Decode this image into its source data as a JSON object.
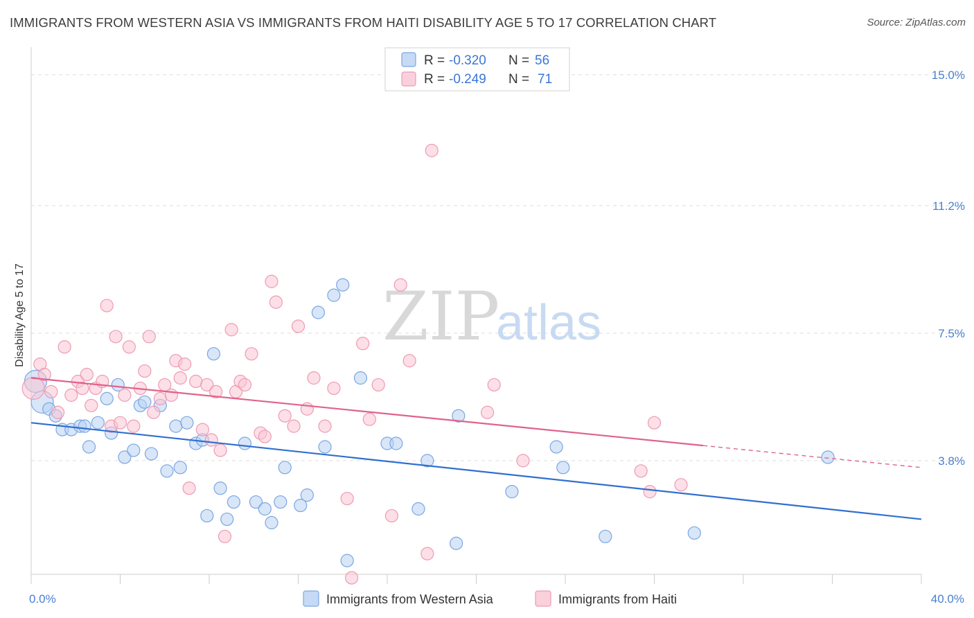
{
  "title": "IMMIGRANTS FROM WESTERN ASIA VS IMMIGRANTS FROM HAITI DISABILITY AGE 5 TO 17 CORRELATION CHART",
  "source": "Source: ZipAtlas.com",
  "watermark": {
    "zip": "ZIP",
    "atlas": "atlas"
  },
  "colors": {
    "blue_fill": "#b8d1f3",
    "blue_stroke": "#7aa6e3",
    "blue_line": "#2f6fd0",
    "pink_fill": "#f9c4d3",
    "pink_stroke": "#ee9ab3",
    "pink_line": "#e0628b",
    "tick_label": "#4a7fd0",
    "grid": "#dddddd"
  },
  "legend": {
    "rows": [
      {
        "r_label": "R =",
        "r_value": "-0.320",
        "n_label": "N =",
        "n_value": "56"
      },
      {
        "r_label": "R =",
        "r_value": "-0.249",
        "n_label": "N =",
        "n_value": "71"
      }
    ]
  },
  "chart_data": {
    "type": "scatter",
    "xlabel": "",
    "ylabel": "Disability Age 5 to 17",
    "xlim": [
      0,
      40
    ],
    "ylim": [
      0.5,
      15.6
    ],
    "y_ticks": [
      {
        "value": 3.8,
        "label": "3.8%"
      },
      {
        "value": 7.5,
        "label": "7.5%"
      },
      {
        "value": 11.2,
        "label": "11.2%"
      },
      {
        "value": 15.0,
        "label": "15.0%"
      }
    ],
    "x_tick_labels": {
      "min": "0.0%",
      "max": "40.0%"
    },
    "x_minor_ticks": [
      0,
      4,
      8,
      12,
      16,
      20,
      24,
      28,
      32,
      36,
      40
    ],
    "legend_position": "top-center",
    "series": [
      {
        "name": "Immigrants from Western Asia",
        "color_key": "blue",
        "trend": {
          "x0": 0,
          "y0": 4.9,
          "x1": 40,
          "y1": 2.1,
          "solid_to": 40
        },
        "points": [
          [
            0.2,
            6.1
          ],
          [
            0.5,
            5.5
          ],
          [
            0.8,
            5.3
          ],
          [
            1.1,
            5.1
          ],
          [
            1.4,
            4.7
          ],
          [
            1.8,
            4.7
          ],
          [
            2.2,
            4.8
          ],
          [
            2.4,
            4.8
          ],
          [
            2.6,
            4.2
          ],
          [
            3.0,
            4.9
          ],
          [
            3.4,
            5.6
          ],
          [
            3.6,
            4.6
          ],
          [
            3.9,
            6.0
          ],
          [
            4.2,
            3.9
          ],
          [
            4.6,
            4.1
          ],
          [
            4.9,
            5.4
          ],
          [
            5.1,
            5.5
          ],
          [
            5.4,
            4.0
          ],
          [
            5.8,
            5.4
          ],
          [
            6.1,
            3.5
          ],
          [
            6.5,
            4.8
          ],
          [
            6.7,
            3.6
          ],
          [
            7.0,
            4.9
          ],
          [
            7.4,
            4.3
          ],
          [
            7.7,
            4.4
          ],
          [
            7.9,
            2.2
          ],
          [
            8.2,
            6.9
          ],
          [
            8.5,
            3.0
          ],
          [
            8.8,
            2.1
          ],
          [
            9.1,
            2.6
          ],
          [
            9.6,
            4.3
          ],
          [
            10.1,
            2.6
          ],
          [
            10.5,
            2.4
          ],
          [
            10.8,
            2.0
          ],
          [
            11.2,
            2.6
          ],
          [
            11.4,
            3.6
          ],
          [
            12.1,
            2.5
          ],
          [
            12.4,
            2.8
          ],
          [
            12.9,
            8.1
          ],
          [
            13.2,
            4.2
          ],
          [
            13.6,
            8.6
          ],
          [
            14.0,
            8.9
          ],
          [
            14.2,
            0.9
          ],
          [
            14.8,
            6.2
          ],
          [
            16.0,
            4.3
          ],
          [
            16.4,
            4.3
          ],
          [
            17.4,
            2.4
          ],
          [
            17.8,
            3.8
          ],
          [
            19.1,
            1.4
          ],
          [
            19.2,
            5.1
          ],
          [
            21.6,
            2.9
          ],
          [
            23.6,
            4.2
          ],
          [
            23.9,
            3.6
          ],
          [
            25.8,
            1.6
          ],
          [
            29.8,
            1.7
          ],
          [
            35.8,
            3.9
          ]
        ],
        "big_points": [
          0.2,
          0.5
        ]
      },
      {
        "name": "Immigrants from Haiti",
        "color_key": "pink",
        "trend": {
          "x0": 0,
          "y0": 6.2,
          "x1": 40,
          "y1": 3.6,
          "solid_to": 30.2
        },
        "points": [
          [
            0.1,
            5.9
          ],
          [
            0.4,
            6.6
          ],
          [
            0.6,
            6.3
          ],
          [
            0.9,
            5.8
          ],
          [
            1.2,
            5.2
          ],
          [
            1.5,
            7.1
          ],
          [
            1.8,
            5.7
          ],
          [
            2.1,
            6.1
          ],
          [
            2.3,
            5.9
          ],
          [
            2.5,
            6.3
          ],
          [
            2.7,
            5.4
          ],
          [
            2.9,
            5.9
          ],
          [
            3.2,
            6.1
          ],
          [
            3.4,
            8.3
          ],
          [
            3.6,
            4.8
          ],
          [
            3.8,
            7.4
          ],
          [
            4.0,
            4.9
          ],
          [
            4.2,
            5.7
          ],
          [
            4.4,
            7.1
          ],
          [
            4.6,
            4.8
          ],
          [
            4.9,
            5.9
          ],
          [
            5.1,
            6.4
          ],
          [
            5.3,
            7.4
          ],
          [
            5.5,
            5.2
          ],
          [
            5.8,
            5.6
          ],
          [
            6.0,
            6.0
          ],
          [
            6.3,
            5.7
          ],
          [
            6.5,
            6.7
          ],
          [
            6.7,
            6.2
          ],
          [
            6.9,
            6.6
          ],
          [
            7.1,
            3.0
          ],
          [
            7.4,
            6.1
          ],
          [
            7.7,
            4.7
          ],
          [
            7.9,
            6.0
          ],
          [
            8.1,
            4.4
          ],
          [
            8.3,
            5.8
          ],
          [
            8.5,
            4.1
          ],
          [
            8.7,
            1.6
          ],
          [
            9.0,
            7.6
          ],
          [
            9.2,
            5.8
          ],
          [
            9.4,
            6.1
          ],
          [
            9.6,
            6.0
          ],
          [
            9.9,
            6.9
          ],
          [
            10.3,
            4.6
          ],
          [
            10.5,
            4.5
          ],
          [
            10.8,
            9.0
          ],
          [
            11.0,
            8.4
          ],
          [
            11.4,
            5.1
          ],
          [
            11.8,
            4.8
          ],
          [
            12.0,
            7.7
          ],
          [
            12.4,
            5.3
          ],
          [
            12.7,
            6.2
          ],
          [
            13.2,
            4.8
          ],
          [
            13.6,
            5.9
          ],
          [
            14.2,
            2.7
          ],
          [
            14.4,
            0.4
          ],
          [
            14.9,
            7.2
          ],
          [
            15.2,
            5.0
          ],
          [
            15.6,
            6.0
          ],
          [
            16.2,
            2.2
          ],
          [
            16.6,
            8.9
          ],
          [
            17.0,
            6.7
          ],
          [
            17.8,
            1.1
          ],
          [
            18.0,
            12.8
          ],
          [
            20.5,
            5.2
          ],
          [
            20.8,
            6.0
          ],
          [
            22.1,
            3.8
          ],
          [
            27.4,
            3.5
          ],
          [
            27.8,
            2.9
          ],
          [
            28.0,
            4.9
          ],
          [
            29.2,
            3.1
          ]
        ],
        "big_points": [
          0.1
        ]
      }
    ]
  }
}
